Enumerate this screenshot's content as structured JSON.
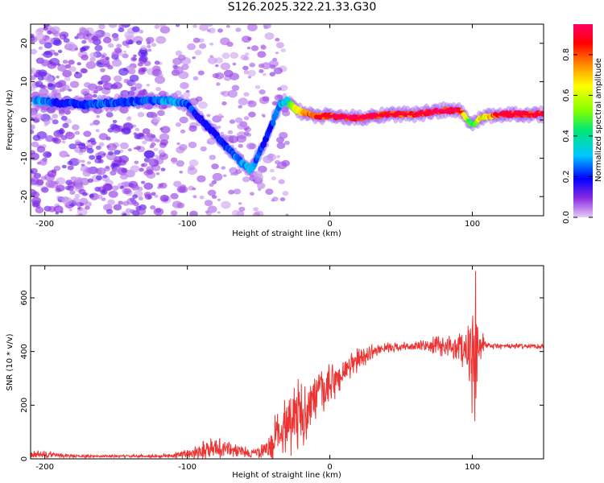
{
  "title": "S126.2025.322.21.33.G30",
  "chart_data": [
    {
      "type": "heatmap",
      "name": "spectrogram",
      "xlabel": "Height of straight line (km)",
      "ylabel": "Frequency (Hz)",
      "xlim": [
        -210,
        150
      ],
      "ylim": [
        -25,
        25
      ],
      "xticks": [
        -200,
        -100,
        0,
        100
      ],
      "yticks": [
        -20,
        -10,
        0,
        10,
        20
      ],
      "colorbar": {
        "label": "Normalized spectral amplitude",
        "range": [
          0,
          0.95
        ],
        "ticks": [
          0.0,
          0.2,
          0.4,
          0.6,
          0.8
        ],
        "colors": [
          "#e6ccf5",
          "#8a2be2",
          "#0000ff",
          "#00c8ff",
          "#00e676",
          "#80ff00",
          "#ffff00",
          "#ff8000",
          "#ff0000",
          "#ff0066"
        ]
      },
      "ridge": {
        "x": [
          -205,
          -190,
          -170,
          -150,
          -130,
          -110,
          -100,
          -90,
          -80,
          -70,
          -60,
          -55,
          -45,
          -35,
          -30,
          -25,
          -20,
          -10,
          0,
          20,
          40,
          60,
          80,
          90,
          95,
          100,
          105,
          120,
          150
        ],
        "y": [
          5,
          4.5,
          4,
          4.5,
          5,
          5,
          4,
          0,
          -4,
          -8,
          -12,
          -13,
          -5,
          4,
          5,
          3,
          2,
          1,
          1,
          0.5,
          1.5,
          1.5,
          2.5,
          2.5,
          1,
          -1.5,
          0.5,
          1.5,
          1.5
        ],
        "amplitude": [
          0.3,
          0.2,
          0.25,
          0.25,
          0.25,
          0.3,
          0.25,
          0.2,
          0.2,
          0.25,
          0.3,
          0.3,
          0.2,
          0.3,
          0.35,
          0.55,
          0.75,
          0.8,
          0.85,
          0.9,
          0.85,
          0.85,
          0.9,
          0.9,
          0.6,
          0.4,
          0.6,
          0.85,
          0.85
        ]
      }
    },
    {
      "type": "line",
      "name": "snr",
      "xlabel": "Height of straight line (km)",
      "ylabel": "SNR (10 * v/v)",
      "xlim": [
        -210,
        150
      ],
      "ylim": [
        0,
        720
      ],
      "xticks": [
        -200,
        -100,
        0,
        100
      ],
      "yticks": [
        0,
        200,
        400,
        600
      ],
      "color": "#ee3333",
      "envelope": {
        "x": [
          -210,
          -195,
          -180,
          -160,
          -140,
          -120,
          -105,
          -95,
          -85,
          -75,
          -65,
          -55,
          -45,
          -40,
          -30,
          -20,
          -10,
          0,
          10,
          20,
          30,
          40,
          60,
          80,
          90,
          95,
          100,
          102,
          105,
          110,
          120,
          135,
          150
        ],
        "y": [
          15,
          15,
          10,
          10,
          10,
          10,
          15,
          25,
          40,
          40,
          30,
          20,
          30,
          60,
          150,
          160,
          230,
          270,
          320,
          370,
          400,
          415,
          420,
          420,
          415,
          420,
          400,
          330,
          420,
          420,
          420,
          420,
          420
        ],
        "noise": [
          20,
          15,
          8,
          6,
          6,
          8,
          15,
          30,
          50,
          45,
          30,
          20,
          40,
          90,
          150,
          150,
          110,
          90,
          70,
          50,
          30,
          20,
          20,
          50,
          60,
          100,
          200,
          250,
          80,
          20,
          12,
          12,
          12
        ]
      }
    }
  ]
}
